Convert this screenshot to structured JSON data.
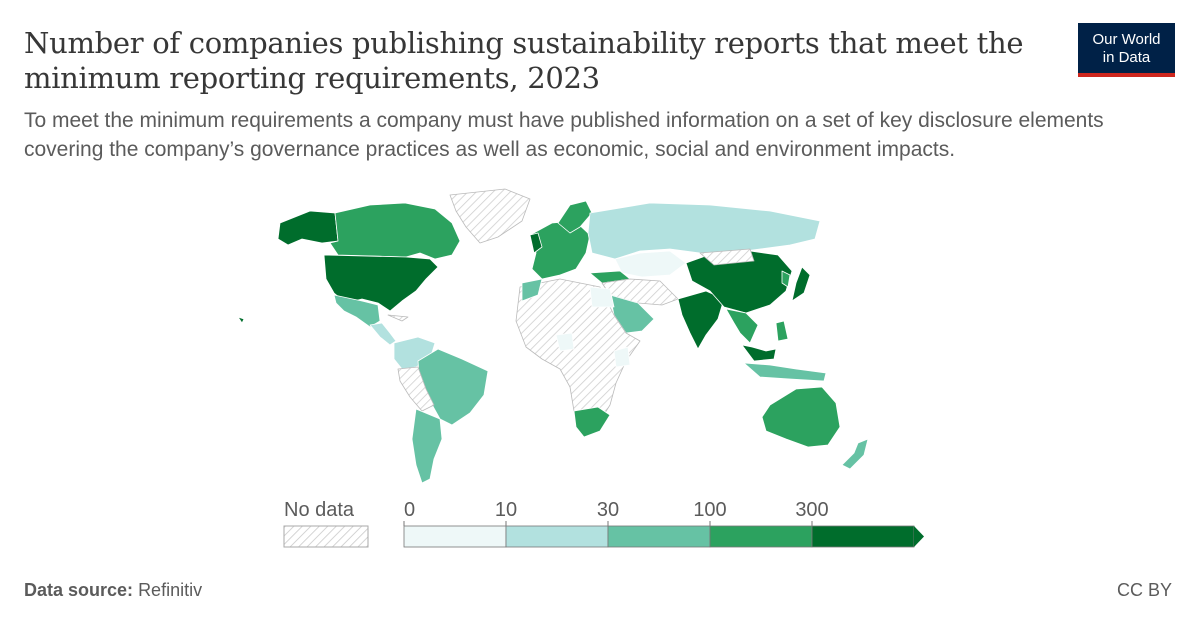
{
  "header": {
    "title": "Number of companies publishing sustainability reports that meet the minimum reporting requirements, 2023",
    "subtitle": "To meet the minimum requirements a company must have published information on a set of key disclosure elements covering the company’s governance practices as well as economic, social and environment impacts."
  },
  "logo": {
    "line1": "Our World",
    "line2": "in Data"
  },
  "legend": {
    "no_data_label": "No data",
    "thresholds": [
      "0",
      "10",
      "30",
      "100",
      "300"
    ],
    "colors": [
      "#eef8f8",
      "#b2e1df",
      "#66c2a4",
      "#2ca25f",
      "#006d2c"
    ],
    "no_data_color": "#e5e5e5"
  },
  "map": {
    "highlighted_regions": [
      {
        "name": "United States",
        "bin": 4
      },
      {
        "name": "Canada",
        "bin": 3
      },
      {
        "name": "Mexico",
        "bin": 2
      },
      {
        "name": "Brazil",
        "bin": 2
      },
      {
        "name": "Argentina",
        "bin": 2
      },
      {
        "name": "Chile",
        "bin": 2
      },
      {
        "name": "United Kingdom",
        "bin": 4
      },
      {
        "name": "Europe",
        "bin": 3
      },
      {
        "name": "Russia",
        "bin": 1
      },
      {
        "name": "Turkey",
        "bin": 3
      },
      {
        "name": "Saudi Arabia",
        "bin": 2
      },
      {
        "name": "South Africa",
        "bin": 3
      },
      {
        "name": "India",
        "bin": 4
      },
      {
        "name": "China",
        "bin": 4
      },
      {
        "name": "Japan",
        "bin": 4
      },
      {
        "name": "Malaysia",
        "bin": 4
      },
      {
        "name": "Indonesia",
        "bin": 2
      },
      {
        "name": "Australia",
        "bin": 3
      },
      {
        "name": "New Zealand",
        "bin": 2
      }
    ]
  },
  "footer": {
    "source_label": "Data source:",
    "source_value": "Refinitiv",
    "license": "CC BY"
  }
}
